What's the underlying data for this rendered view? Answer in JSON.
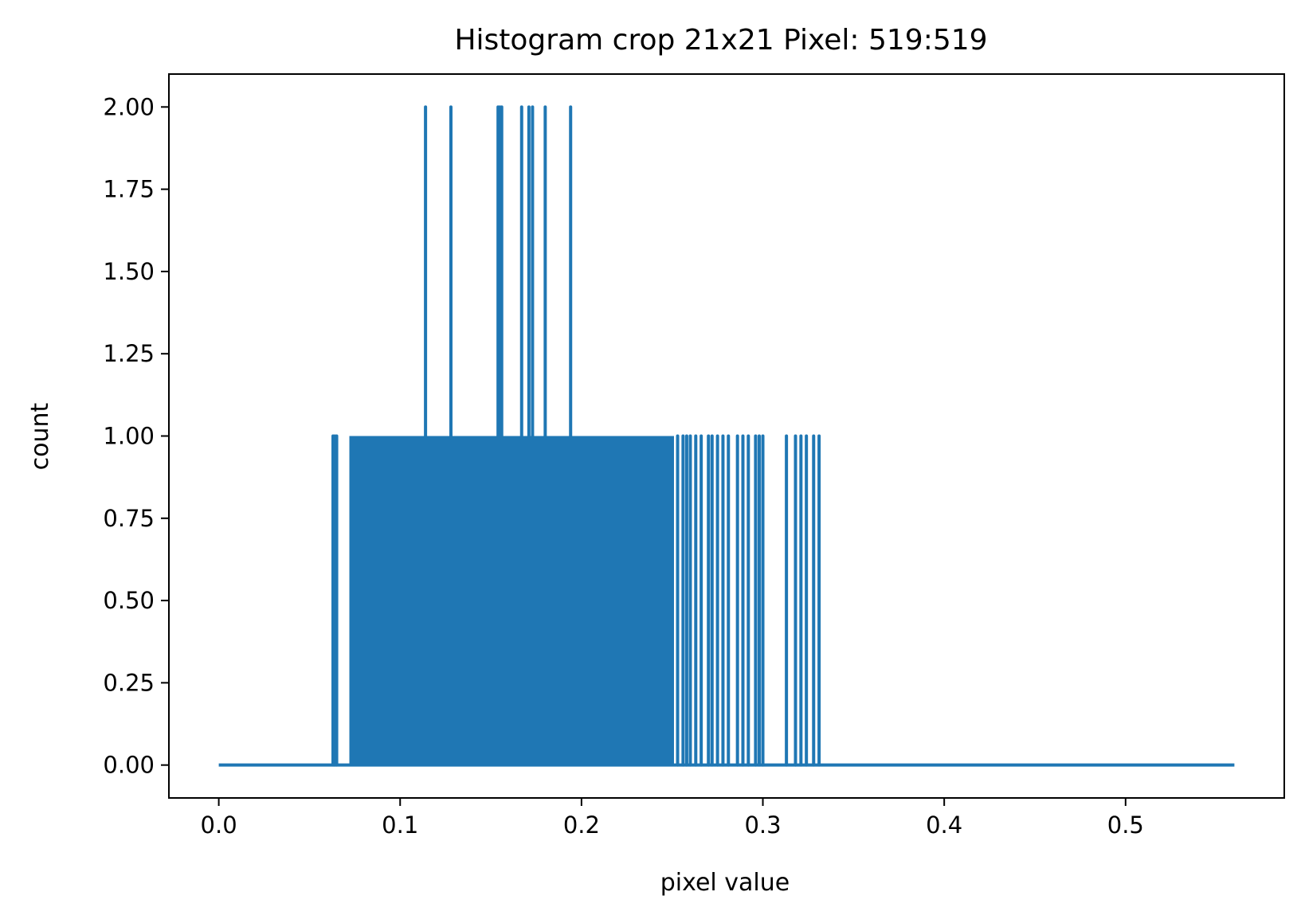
{
  "chart_data": {
    "type": "line",
    "title": "Histogram crop 21x21 Pixel: 519:519",
    "xlabel": "pixel value",
    "ylabel": "count",
    "xlim": [
      -0.0275,
      0.5875
    ],
    "ylim": [
      -0.1,
      2.1
    ],
    "xticks": [
      0.0,
      0.1,
      0.2,
      0.3,
      0.4,
      0.5
    ],
    "xtick_labels": [
      "0.0",
      "0.1",
      "0.2",
      "0.3",
      "0.4",
      "0.5"
    ],
    "yticks": [
      0.0,
      0.25,
      0.5,
      0.75,
      1.0,
      1.25,
      1.5,
      1.75,
      2.0
    ],
    "ytick_labels": [
      "0.00",
      "0.25",
      "0.50",
      "0.75",
      "1.00",
      "1.25",
      "1.50",
      "1.75",
      "2.00"
    ],
    "grid": false,
    "x_range": [
      0.0,
      0.56
    ],
    "series": [
      {
        "color": "#1f77b4",
        "dense_region_x": [
          0.072,
          0.251
        ],
        "spikes_count_1": [
          0.063,
          0.064,
          0.065,
          0.253,
          0.256,
          0.258,
          0.26,
          0.263,
          0.266,
          0.27,
          0.272,
          0.275,
          0.278,
          0.281,
          0.286,
          0.289,
          0.292,
          0.296,
          0.298,
          0.3,
          0.313,
          0.318,
          0.321,
          0.324,
          0.328,
          0.331
        ],
        "spikes_count_2": [
          0.114,
          0.128,
          0.154,
          0.155,
          0.156,
          0.167,
          0.171,
          0.173,
          0.18,
          0.194
        ]
      }
    ]
  }
}
